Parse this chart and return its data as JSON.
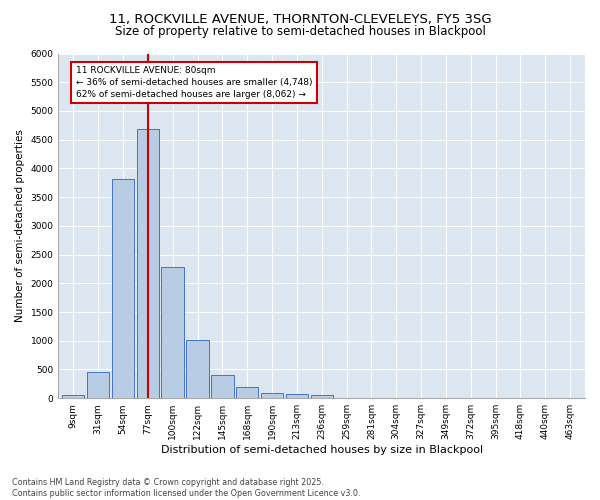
{
  "title": "11, ROCKVILLE AVENUE, THORNTON-CLEVELEYS, FY5 3SG",
  "subtitle": "Size of property relative to semi-detached houses in Blackpool",
  "xlabel": "Distribution of semi-detached houses by size in Blackpool",
  "ylabel": "Number of semi-detached properties",
  "bins": [
    "9sqm",
    "31sqm",
    "54sqm",
    "77sqm",
    "100sqm",
    "122sqm",
    "145sqm",
    "168sqm",
    "190sqm",
    "213sqm",
    "236sqm",
    "259sqm",
    "281sqm",
    "304sqm",
    "327sqm",
    "349sqm",
    "372sqm",
    "395sqm",
    "418sqm",
    "440sqm",
    "463sqm"
  ],
  "values": [
    55,
    460,
    3820,
    4680,
    2290,
    1010,
    400,
    195,
    95,
    70,
    55,
    10,
    0,
    0,
    0,
    0,
    0,
    0,
    0,
    0,
    0
  ],
  "bar_color": "#b8cce4",
  "bar_edge_color": "#4472c4",
  "annotation_text": "11 ROCKVILLE AVENUE: 80sqm\n← 36% of semi-detached houses are smaller (4,748)\n62% of semi-detached houses are larger (8,062) →",
  "annotation_box_color": "#ffffff",
  "annotation_box_edge": "#cc0000",
  "vline_color": "#cc0000",
  "ylim": [
    0,
    6000
  ],
  "yticks": [
    0,
    500,
    1000,
    1500,
    2000,
    2500,
    3000,
    3500,
    4000,
    4500,
    5000,
    5500,
    6000
  ],
  "bg_color": "#dce6f1",
  "footer_text": "Contains HM Land Registry data © Crown copyright and database right 2025.\nContains public sector information licensed under the Open Government Licence v3.0.",
  "title_fontsize": 9.5,
  "subtitle_fontsize": 8.5,
  "xlabel_fontsize": 8,
  "ylabel_fontsize": 7.5,
  "tick_fontsize": 6.5,
  "annotation_fontsize": 6.5,
  "footer_fontsize": 5.8
}
